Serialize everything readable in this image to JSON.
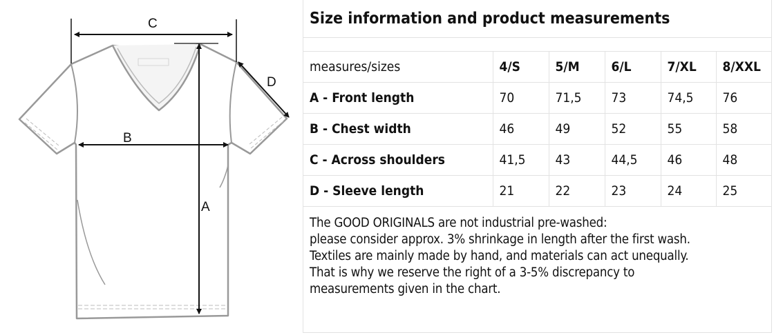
{
  "diagram": {
    "labels": {
      "a": "A",
      "b": "B",
      "c": "C",
      "d": "D"
    }
  },
  "table": {
    "title": "Size information and product measurements",
    "header": {
      "label": "measures/sizes",
      "sizes": [
        "4/S",
        "5/M",
        "6/L",
        "7/XL",
        "8/XXL"
      ]
    },
    "rows": [
      {
        "label": "A - Front length",
        "values": [
          "70",
          "71,5",
          "73",
          "74,5",
          "76"
        ]
      },
      {
        "label": "B - Chest width",
        "values": [
          "46",
          "49",
          "52",
          "55",
          "58"
        ]
      },
      {
        "label": "C - Across shoulders",
        "values": [
          "41,5",
          "43",
          "44,5",
          "46",
          "48"
        ]
      },
      {
        "label": "D - Sleeve length",
        "values": [
          "21",
          "22",
          "23",
          "24",
          "25"
        ]
      }
    ]
  },
  "note": [
    "The GOOD ORIGINALS are not industrial pre-washed:",
    "please consider approx. 3% shrinkage in length after the first wash.",
    "Textiles are mainly made by hand, and materials can act unequally.",
    "That is why we reserve the right of a 3-5% discrepancy to",
    "measurements given in the chart."
  ]
}
